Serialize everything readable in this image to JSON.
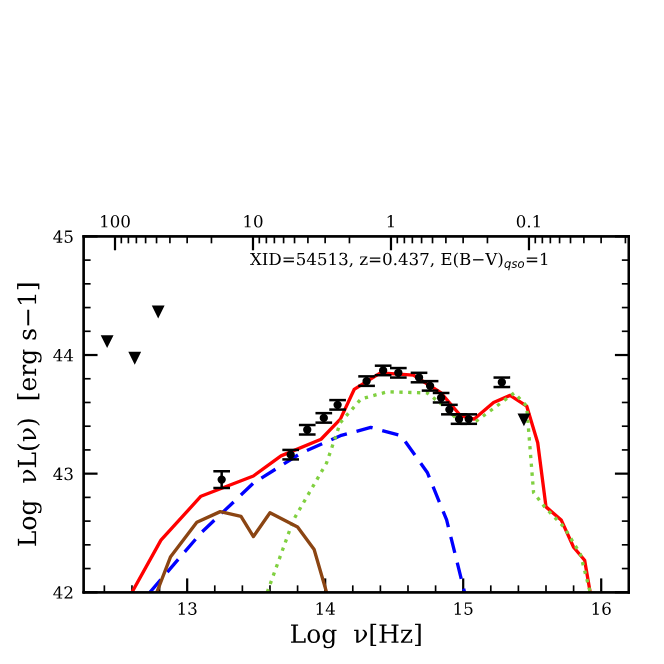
{
  "chart_data": {
    "type": "line",
    "xlabel": "Log  ν[Hz]",
    "ylabel": "Log  νL(ν)  [erg s−1]",
    "annotations": [
      "XID=54513, z=0.437, E(B−V)$_{qso}$=1"
    ],
    "xlim": [
      12.25,
      16.2
    ],
    "xticks": [
      13,
      14,
      15,
      16
    ],
    "ylim": [
      42,
      45
    ],
    "yticks": [
      42,
      43,
      44,
      45
    ],
    "x2lim": [
      168.7,
      0.0189
    ],
    "x2ticks": [
      100,
      10,
      1,
      0.1
    ],
    "log": "x2",
    "grid": false,
    "series": [
      {
        "color": "#ff0000",
        "line_style": "solid",
        "marker": "none",
        "x": [
          12.6,
          12.81,
          13.1,
          13.48,
          13.68,
          13.97,
          14.11,
          14.21,
          14.4,
          14.64,
          14.84,
          14.98,
          15.08,
          15.22,
          15.34,
          15.46,
          15.54,
          15.6,
          15.71,
          15.8,
          15.88,
          15.92
        ],
        "values": [
          42.0,
          42.44,
          42.81,
          42.98,
          43.15,
          43.29,
          43.46,
          43.71,
          43.85,
          43.83,
          43.68,
          43.49,
          43.46,
          43.6,
          43.66,
          43.57,
          43.26,
          42.72,
          42.61,
          42.38,
          42.27,
          42.0
        ]
      },
      {
        "color": "#0000ff",
        "line_style": "dashed",
        "marker": "none",
        "x": [
          12.73,
          13.1,
          13.48,
          13.82,
          14.11,
          14.33,
          14.55,
          14.74,
          14.88,
          15.01
        ],
        "values": [
          42.0,
          42.5,
          42.92,
          43.17,
          43.32,
          43.39,
          43.32,
          43.01,
          42.61,
          42.0
        ]
      },
      {
        "color": "#80d040",
        "line_style": "dotted",
        "marker": "none",
        "x": [
          13.58,
          13.77,
          14.01,
          14.11,
          14.26,
          14.45,
          14.74,
          14.86,
          14.98,
          15.08,
          15.22,
          15.37,
          15.46,
          15.51,
          15.59,
          15.73,
          15.85,
          15.92
        ],
        "values": [
          42.0,
          42.61,
          43.09,
          43.43,
          43.63,
          43.69,
          43.68,
          43.57,
          43.43,
          43.43,
          43.55,
          43.68,
          43.57,
          42.84,
          42.72,
          42.55,
          42.32,
          42.0
        ]
      },
      {
        "color": "#8b4513",
        "line_style": "solid",
        "marker": "none",
        "x": [
          12.78,
          12.88,
          13.07,
          13.24,
          13.39,
          13.48,
          13.6,
          13.8,
          13.92,
          14.01
        ],
        "values": [
          42.0,
          42.3,
          42.59,
          42.68,
          42.64,
          42.47,
          42.67,
          42.55,
          42.36,
          42.0
        ]
      },
      {
        "type": "scatter",
        "color": "#000000",
        "marker": "circle",
        "x": [
          13.25,
          13.75,
          13.87,
          13.99,
          14.09,
          14.3,
          14.42,
          14.53,
          14.68,
          14.76,
          14.84,
          14.9,
          14.97,
          15.04,
          15.28
        ],
        "values": [
          42.95,
          43.16,
          43.37,
          43.47,
          43.58,
          43.78,
          43.87,
          43.85,
          43.81,
          43.74,
          43.64,
          43.54,
          43.46,
          43.46,
          43.77
        ],
        "errors": [
          0.07,
          0.04,
          0.04,
          0.04,
          0.04,
          0.04,
          0.04,
          0.04,
          0.04,
          0.04,
          0.04,
          0.04,
          0.04,
          0.04,
          0.04
        ]
      },
      {
        "type": "scatter",
        "color": "#000000",
        "marker": "triangle",
        "x": [
          12.42,
          12.62,
          12.79,
          15.44
        ],
        "values": [
          44.12,
          43.98,
          44.37,
          43.46
        ]
      }
    ]
  }
}
